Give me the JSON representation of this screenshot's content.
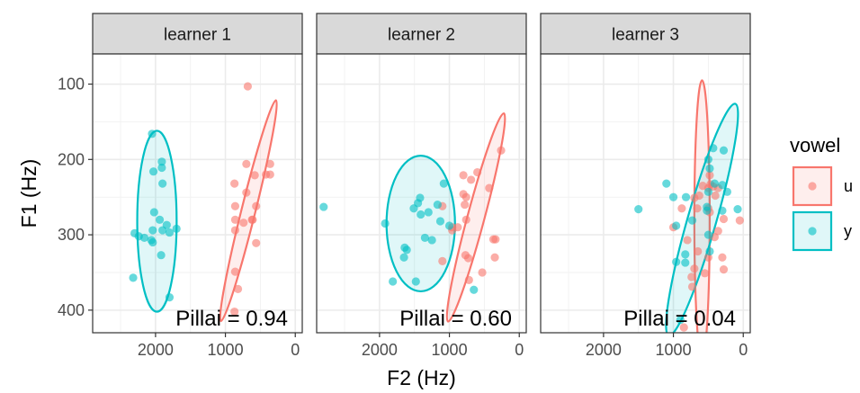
{
  "chart_data": {
    "type": "scatter",
    "xlabel": "F2 (Hz)",
    "ylabel": "F1 (Hz)",
    "x_reversed": true,
    "y_reversed": true,
    "xlim": [
      2900,
      -100
    ],
    "ylim": [
      60,
      430
    ],
    "xticks": [
      2000,
      1000,
      0
    ],
    "yticks": [
      100,
      200,
      300,
      400
    ],
    "grid": true,
    "legend": {
      "title": "vowel",
      "position": "right",
      "entries": [
        {
          "label": "u",
          "color": "#F8766D"
        },
        {
          "label": "y",
          "color": "#00BFC4"
        }
      ]
    },
    "panels": [
      {
        "strip": "learner 1",
        "annotation": "Pillai = 0.94",
        "series": [
          {
            "name": "u",
            "color": "#F8766D",
            "ellipse": {
              "cx": 670,
              "cy": 268,
              "rx": 100,
              "ry": 151,
              "angle_deg": 14
            },
            "points": [
              [
                680,
                103
              ],
              [
                360,
                206
              ],
              [
                700,
                206
              ],
              [
                360,
                220
              ],
              [
                420,
                220
              ],
              [
                580,
                221
              ],
              [
                870,
                232
              ],
              [
                700,
                244
              ],
              [
                860,
                262
              ],
              [
                560,
                262
              ],
              [
                860,
                280
              ],
              [
                610,
                280
              ],
              [
                620,
                280
              ],
              [
                740,
                284
              ],
              [
                860,
                294
              ],
              [
                560,
                311
              ],
              [
                860,
                349
              ],
              [
                820,
                372
              ],
              [
                870,
                402
              ]
            ]
          },
          {
            "name": "y",
            "color": "#00BFC4",
            "ellipse": {
              "cx": 1980,
              "cy": 282,
              "rx": 282,
              "ry": 120,
              "angle_deg": 0
            },
            "points": [
              [
                2050,
                166
              ],
              [
                1910,
                203
              ],
              [
                1910,
                211
              ],
              [
                2030,
                216
              ],
              [
                1900,
                232
              ],
              [
                2020,
                270
              ],
              [
                1940,
                280
              ],
              [
                2300,
                298
              ],
              [
                2040,
                294
              ],
              [
                1840,
                287
              ],
              [
                1900,
                294
              ],
              [
                1700,
                292
              ],
              [
                1800,
                297
              ],
              [
                2240,
                302
              ],
              [
                2160,
                304
              ],
              [
                2060,
                307
              ],
              [
                2040,
                310
              ],
              [
                1920,
                327
              ],
              [
                2320,
                357
              ],
              [
                1800,
                383
              ]
            ]
          }
        ]
      },
      {
        "strip": "learner 2",
        "annotation": "Pillai = 0.60",
        "series": [
          {
            "name": "u",
            "color": "#F8766D",
            "ellipse": {
              "cx": 620,
              "cy": 277,
              "rx": 122,
              "ry": 143,
              "angle_deg": 15
            },
            "points": [
              [
                260,
                188
              ],
              [
                600,
                217
              ],
              [
                800,
                221
              ],
              [
                690,
                227
              ],
              [
                800,
                246
              ],
              [
                430,
                238
              ],
              [
                760,
                250
              ],
              [
                780,
                260
              ],
              [
                1100,
                262
              ],
              [
                880,
                290
              ],
              [
                960,
                294
              ],
              [
                960,
                290
              ],
              [
                370,
                306
              ],
              [
                340,
                306
              ],
              [
                770,
                327
              ],
              [
                730,
                331
              ],
              [
                350,
                330
              ],
              [
                1100,
                335
              ],
              [
                530,
                350
              ],
              [
                720,
                360
              ],
              [
                760,
                280
              ]
            ]
          },
          {
            "name": "y",
            "color": "#00BFC4",
            "ellipse": {
              "cx": 1410,
              "cy": 285,
              "rx": 490,
              "ry": 90,
              "angle_deg": 0
            },
            "points": [
              [
                2800,
                263
              ],
              [
                1420,
                251
              ],
              [
                1450,
                258
              ],
              [
                1510,
                265
              ],
              [
                1300,
                270
              ],
              [
                1410,
                273
              ],
              [
                1170,
                260
              ],
              [
                1080,
                232
              ],
              [
                1130,
                282
              ],
              [
                1920,
                285
              ],
              [
                1000,
                288
              ],
              [
                1350,
                304
              ],
              [
                1250,
                307
              ],
              [
                1640,
                317
              ],
              [
                1610,
                320
              ],
              [
                1650,
                330
              ],
              [
                1810,
                362
              ],
              [
                1480,
                362
              ],
              [
                650,
                373
              ]
            ]
          }
        ]
      },
      {
        "strip": "learner 3",
        "annotation": "Pillai = 0.04",
        "series": [
          {
            "name": "u",
            "color": "#F8766D",
            "ellipse": {
              "cx": 590,
              "cy": 280,
              "rx": 110,
              "ry": 185,
              "angle_deg": 0
            },
            "points": [
              [
                480,
                221
              ],
              [
                580,
                235
              ],
              [
                470,
                233
              ],
              [
                500,
                238
              ],
              [
                430,
                236
              ],
              [
                630,
                248
              ],
              [
                360,
                238
              ],
              [
                400,
                248
              ],
              [
                700,
                251
              ],
              [
                660,
                265
              ],
              [
                500,
                265
              ],
              [
                880,
                265
              ],
              [
                480,
                270
              ],
              [
                280,
                279
              ],
              [
                50,
                281
              ],
              [
                1000,
                290
              ],
              [
                360,
                295
              ],
              [
                410,
                303
              ],
              [
                800,
                307
              ],
              [
                650,
                322
              ],
              [
                500,
                330
              ],
              [
                300,
                330
              ],
              [
                700,
                345
              ],
              [
                550,
                351
              ],
              [
                280,
                346
              ],
              [
                740,
                356
              ],
              [
                730,
                369
              ],
              [
                850,
                423
              ]
            ]
          },
          {
            "name": "y",
            "color": "#00BFC4",
            "ellipse": {
              "cx": 590,
              "cy": 280,
              "rx": 205,
              "ry": 160,
              "angle_deg": 16
            },
            "points": [
              [
                430,
                185
              ],
              [
                500,
                200
              ],
              [
                480,
                212
              ],
              [
                280,
                188
              ],
              [
                1100,
                232
              ],
              [
                300,
                234
              ],
              [
                410,
                232
              ],
              [
                500,
                243
              ],
              [
                230,
                243
              ],
              [
                820,
                250
              ],
              [
                1000,
                250
              ],
              [
                520,
                263
              ],
              [
                520,
                268
              ],
              [
                300,
                268
              ],
              [
                80,
                266
              ],
              [
                1500,
                266
              ],
              [
                730,
                281
              ],
              [
                960,
                288
              ],
              [
                500,
                300
              ],
              [
                480,
                322
              ],
              [
                830,
                326
              ],
              [
                960,
                336
              ],
              [
                830,
                337
              ],
              [
                900,
                413
              ]
            ]
          }
        ]
      }
    ]
  }
}
